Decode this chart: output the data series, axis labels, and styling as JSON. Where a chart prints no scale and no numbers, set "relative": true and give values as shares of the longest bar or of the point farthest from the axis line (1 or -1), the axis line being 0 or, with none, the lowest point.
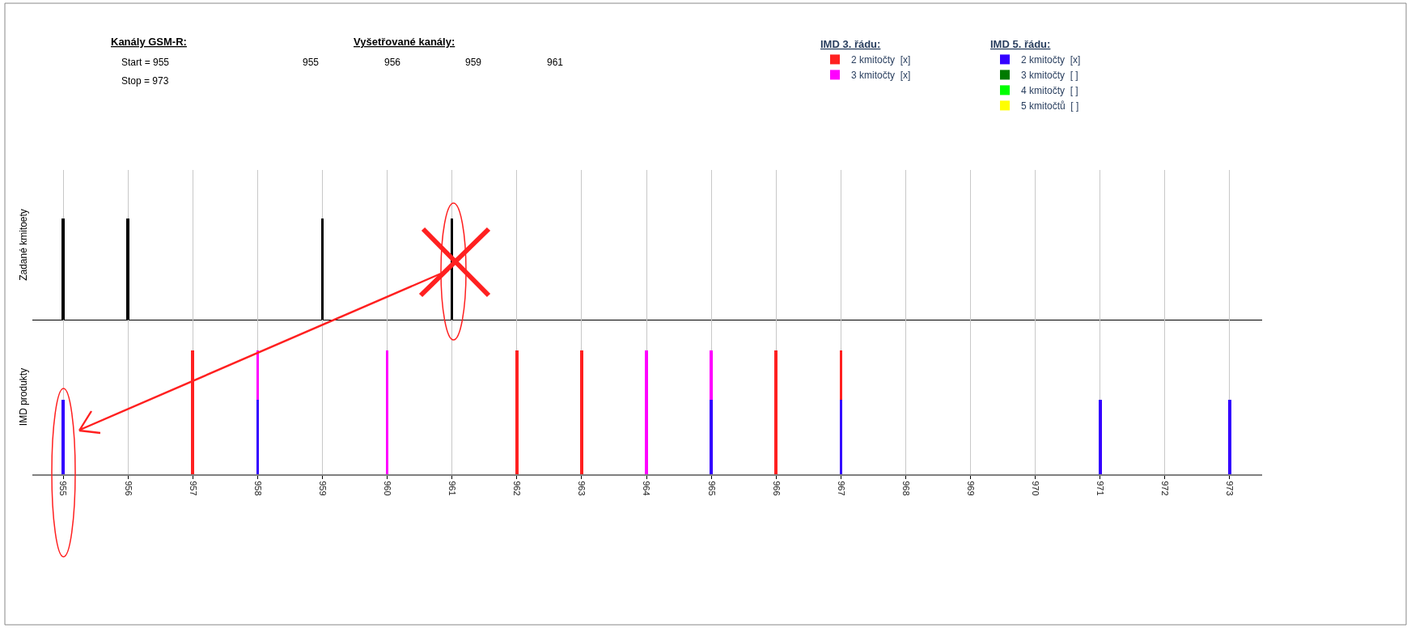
{
  "chart_data": [
    {
      "type": "bar",
      "relative": true,
      "ylabel": "Zadané kmitoety",
      "grid": "x",
      "tick_labels": false,
      "categories": [
        "955",
        "956",
        "957",
        "958",
        "959",
        "960",
        "961",
        "962",
        "963",
        "964",
        "965",
        "966",
        "967",
        "968",
        "969",
        "970",
        "971",
        "972",
        "973"
      ],
      "series": [
        {
          "color": "#000000",
          "values": [
            1,
            1,
            null,
            null,
            1,
            null,
            1,
            null,
            null,
            null,
            null,
            null,
            null,
            null,
            null,
            null,
            null,
            null,
            null
          ]
        }
      ],
      "annotations": [
        "Kanály GSM-R:",
        "Start = 955",
        "Stop = 973",
        "Vyšetřované kanály:",
        "955",
        "956",
        "959",
        "961"
      ]
    },
    {
      "type": "bar",
      "relative": true,
      "stacked": true,
      "ylabel": "IMD produkty",
      "grid": "x",
      "tick_labels": "x",
      "legend": "top right",
      "legend_title": [
        "IMD 3. řádu:",
        "IMD 5. řádu:"
      ],
      "categories": [
        "955",
        "956",
        "957",
        "958",
        "959",
        "960",
        "961",
        "962",
        "963",
        "964",
        "965",
        "966",
        "967",
        "968",
        "969",
        "970",
        "971",
        "972",
        "973"
      ],
      "series": [
        {
          "name": "2 kmitočty  [x]",
          "color": "#3300ff",
          "values": [
            0.6,
            null,
            null,
            0.6,
            null,
            null,
            null,
            null,
            null,
            null,
            0.6,
            null,
            0.6,
            null,
            null,
            null,
            0.6,
            null,
            0.6
          ]
        },
        {
          "name": "2 kmitočty  [x]",
          "color": "#ff2020",
          "values": [
            null,
            null,
            1,
            null,
            null,
            null,
            null,
            1,
            1,
            null,
            null,
            1,
            0.4,
            null,
            null,
            null,
            null,
            null,
            null
          ]
        },
        {
          "name": "3 kmitočty  [x]",
          "color": "#ff00ff",
          "values": [
            null,
            null,
            null,
            0.4,
            null,
            1,
            null,
            null,
            null,
            1,
            0.4,
            null,
            null,
            null,
            null,
            null,
            null,
            null,
            null
          ]
        },
        {
          "name": "3 kmitočty  [ ]",
          "color": "#007a00",
          "values": [
            null,
            null,
            null,
            null,
            null,
            null,
            null,
            null,
            null,
            null,
            null,
            null,
            null,
            null,
            null,
            null,
            null,
            null,
            null
          ]
        },
        {
          "name": "4 kmitočty  [ ]",
          "color": "#00ff00",
          "values": [
            null,
            null,
            null,
            null,
            null,
            null,
            null,
            null,
            null,
            null,
            null,
            null,
            null,
            null,
            null,
            null,
            null,
            null,
            null
          ]
        },
        {
          "name": "5 kmitočtů  [ ]",
          "color": "#ffff00",
          "values": [
            null,
            null,
            null,
            null,
            null,
            null,
            null,
            null,
            null,
            null,
            null,
            null,
            null,
            null,
            null,
            null,
            null,
            null,
            null
          ]
        }
      ]
    }
  ]
}
